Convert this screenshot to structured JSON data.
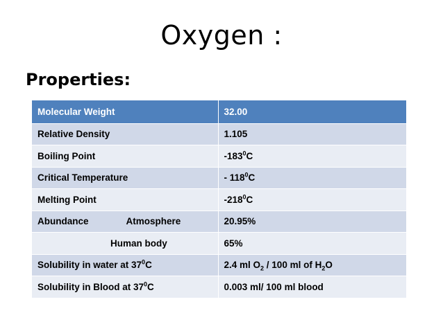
{
  "title": "Oxygen :",
  "subtitle": "Properties:",
  "table": {
    "header": {
      "property": "Molecular Weight",
      "value": "32.00"
    },
    "rows": [
      {
        "property": "Relative Density",
        "value": "1.105"
      },
      {
        "property": "Boiling Point",
        "value_pre": "-183",
        "value_sup": "0",
        "value_post": "C"
      },
      {
        "property": "Critical Temperature",
        "value_pre": "- 118",
        "value_sup": "0",
        "value_post": "C"
      },
      {
        "property": "Melting Point",
        "value_pre": "-218",
        "value_sup": "0",
        "value_post": "C"
      },
      {
        "property": "Abundance",
        "sub_property": "Atmosphere",
        "value": "20.95%"
      },
      {
        "sub_property": "Human body",
        "value": "65%"
      },
      {
        "property_pre": "Solubility in water at 37",
        "property_sup": "0",
        "property_post": "C",
        "value_a": "2.4 ml O",
        "value_sub1": "2",
        "value_b": " / 100 ml of H",
        "value_sub2": "2",
        "value_c": "O"
      },
      {
        "property_pre": "Solubility in Blood at 37",
        "property_sup": "0",
        "property_post": "C",
        "value": "0.003 ml/ 100 ml blood"
      }
    ]
  }
}
